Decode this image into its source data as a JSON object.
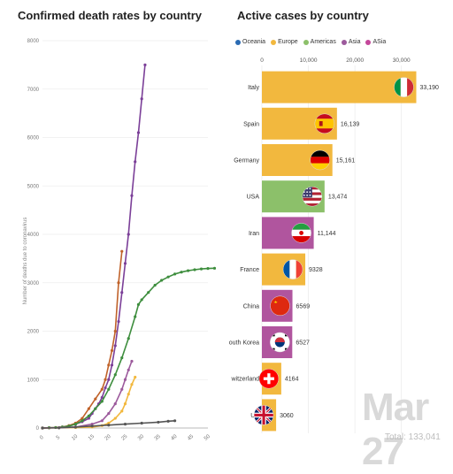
{
  "left_title": "Confirmed death rates by country",
  "right_title": "Active cases by country",
  "legend": [
    {
      "label": "Oceania",
      "color": "#2a6bb3"
    },
    {
      "label": "Europe",
      "color": "#f2b83e"
    },
    {
      "label": "Americas",
      "color": "#8cc06a"
    },
    {
      "label": "Asia",
      "color": "#9c5a9c"
    },
    {
      "label": "ASia",
      "color": "#c4479a"
    }
  ],
  "date_label": "Mar 27",
  "total_label": "Total: 133,041",
  "chart_data": [
    {
      "type": "line",
      "title": "Confirmed death rates by country",
      "ylabel": "Number of deaths due to coronavirus",
      "xlabel": "",
      "xlim": [
        0,
        50
      ],
      "ylim": [
        0,
        8000
      ],
      "x_ticks": [
        "0",
        "5",
        "10",
        "15",
        "20",
        "25",
        "30",
        "35",
        "40",
        "45",
        "50"
      ],
      "y_ticks": [
        "0",
        "1000",
        "2000",
        "3000",
        "4000",
        "5000",
        "6000",
        "7000",
        "8000"
      ],
      "series": [
        {
          "color": "#7b3f98",
          "x": [
            0,
            2,
            4,
            6,
            8,
            10,
            12,
            14,
            15,
            16,
            17,
            18,
            19,
            20,
            21,
            22,
            23,
            24,
            25,
            26,
            27,
            28,
            29,
            30,
            31
          ],
          "y": [
            0,
            5,
            10,
            20,
            40,
            80,
            130,
            200,
            300,
            400,
            500,
            630,
            830,
            1000,
            1300,
            1700,
            2200,
            2800,
            3400,
            4000,
            4800,
            5500,
            6100,
            6800,
            7500
          ]
        },
        {
          "color": "#c0622a",
          "x": [
            0,
            2,
            4,
            6,
            8,
            10,
            12,
            14,
            16,
            18,
            19,
            20,
            21,
            22,
            23,
            24
          ],
          "y": [
            0,
            5,
            10,
            20,
            50,
            100,
            200,
            400,
            600,
            800,
            1000,
            1300,
            1600,
            2000,
            3000,
            3650
          ]
        },
        {
          "color": "#3e8e3e",
          "x": [
            0,
            2,
            4,
            6,
            8,
            10,
            12,
            14,
            16,
            18,
            20,
            22,
            24,
            26,
            28,
            29,
            30,
            32,
            34,
            36,
            38,
            40,
            42,
            44,
            46,
            48,
            50,
            52
          ],
          "y": [
            0,
            5,
            10,
            20,
            40,
            80,
            150,
            250,
            400,
            550,
            800,
            1100,
            1450,
            1850,
            2300,
            2550,
            2650,
            2800,
            2950,
            3050,
            3120,
            3180,
            3220,
            3250,
            3270,
            3285,
            3295,
            3300
          ]
        },
        {
          "color": "#f2b83e",
          "x": [
            0,
            5,
            10,
            15,
            18,
            20,
            22,
            24,
            25,
            26,
            27,
            28
          ],
          "y": [
            0,
            5,
            10,
            20,
            50,
            100,
            200,
            350,
            500,
            700,
            900,
            1050
          ]
        },
        {
          "color": "#9c5a9c",
          "x": [
            0,
            5,
            10,
            15,
            18,
            20,
            22,
            24,
            25,
            26,
            27
          ],
          "y": [
            0,
            5,
            20,
            80,
            150,
            300,
            500,
            800,
            1000,
            1200,
            1380
          ]
        },
        {
          "color": "#555555",
          "x": [
            0,
            5,
            10,
            15,
            20,
            25,
            30,
            35,
            38,
            40
          ],
          "y": [
            0,
            5,
            20,
            40,
            60,
            80,
            100,
            120,
            140,
            150
          ]
        }
      ]
    },
    {
      "type": "bar",
      "title": "Active cases by country",
      "orientation": "horizontal",
      "xlim": [
        0,
        35000
      ],
      "x_ticks": [
        "0",
        "10,000",
        "20,000",
        "30,000"
      ],
      "categories": [
        "Italy",
        "Spain",
        "Germany",
        "USA",
        "Iran",
        "France",
        "China",
        "outh Korea",
        "witzerland",
        "UK"
      ],
      "values": [
        33190,
        16139,
        15161,
        13474,
        11144,
        9328,
        6569,
        6527,
        4164,
        3060
      ],
      "value_labels": [
        "33,190",
        "16,139",
        "15,161",
        "13,474",
        "11,144",
        "9328",
        "6569",
        "6527",
        "4164",
        "3060"
      ],
      "colors": [
        "#f2b83e",
        "#f2b83e",
        "#f2b83e",
        "#8cc06a",
        "#b0559e",
        "#f2b83e",
        "#b0559e",
        "#b0559e",
        "#f2b83e",
        "#f2b83e"
      ],
      "flags": [
        "italy-flag",
        "spain-flag",
        "germany-flag",
        "usa-flag",
        "iran-flag",
        "france-flag",
        "china-flag",
        "south-korea-flag",
        "switzerland-flag",
        "uk-flag"
      ]
    }
  ]
}
